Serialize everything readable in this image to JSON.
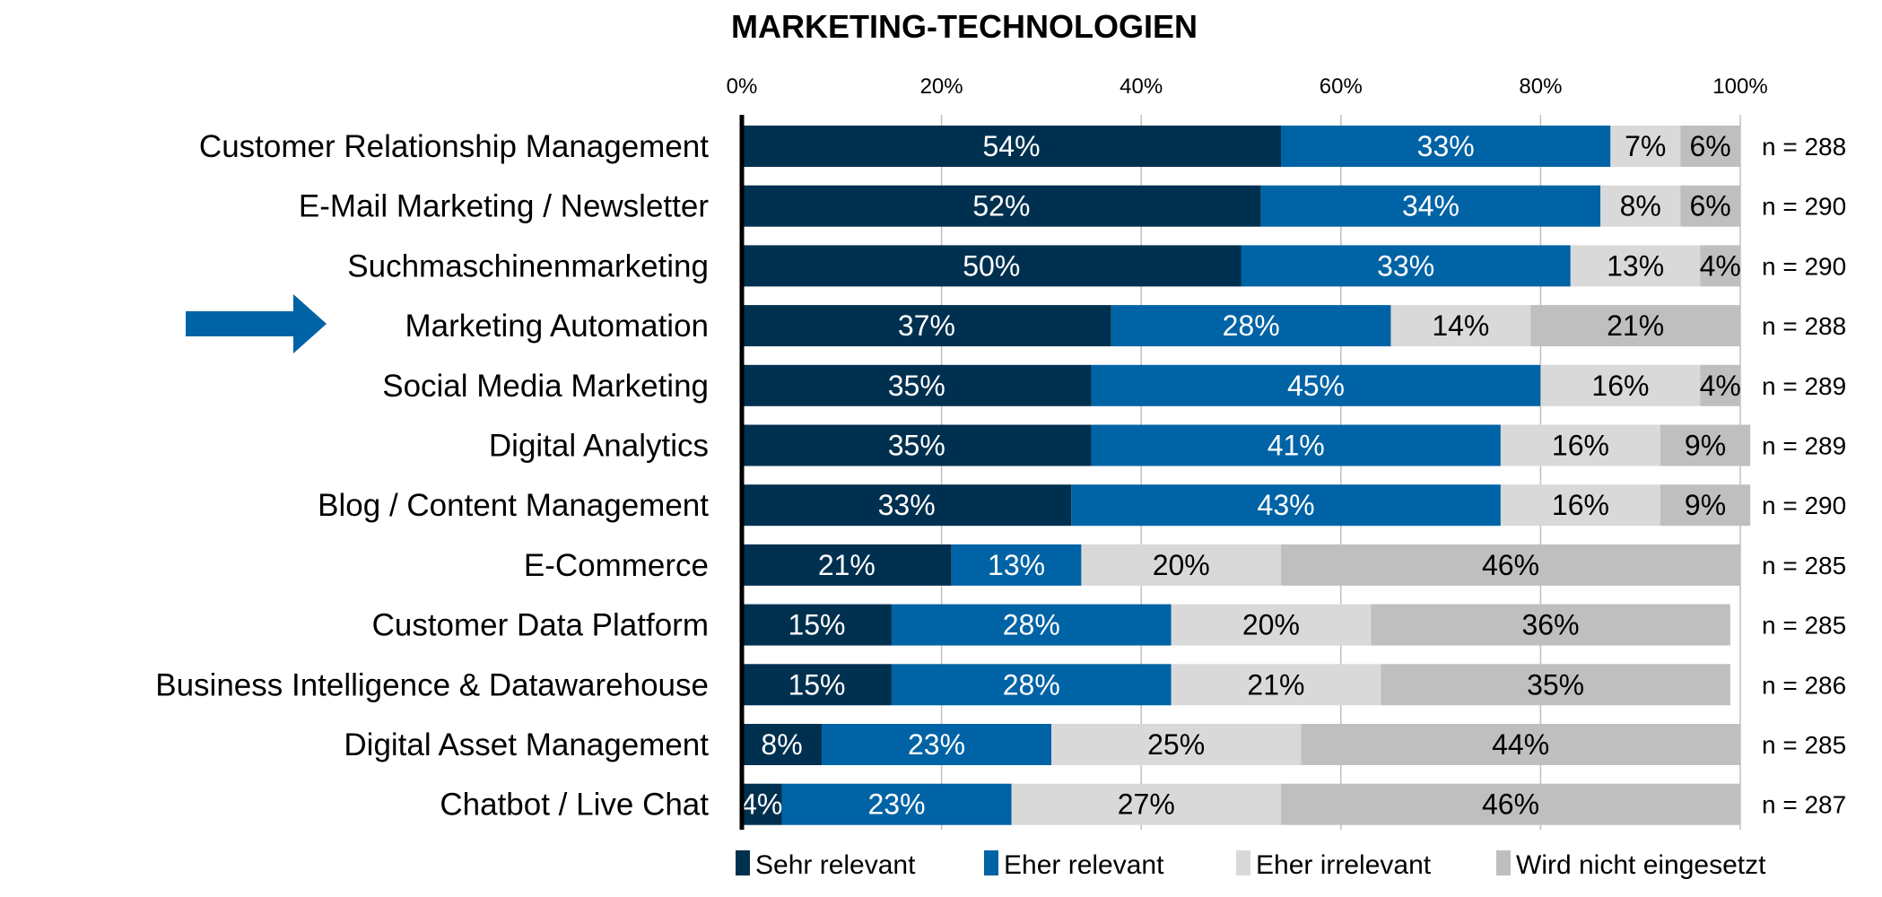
{
  "chart_data": {
    "type": "bar",
    "orientation": "horizontal",
    "stacked": true,
    "title": "MARKETING-TECHNOLOGIEN",
    "xlim": [
      0,
      100
    ],
    "xticks": [
      "0%",
      "20%",
      "40%",
      "60%",
      "80%",
      "100%"
    ],
    "xaxis_position": "top",
    "grid": true,
    "legend_position": "bottom",
    "categories": [
      "Customer Relationship Management",
      "E-Mail Marketing / Newsletter",
      "Suchmaschinenmarketing",
      "Marketing Automation",
      "Social Media Marketing",
      "Digital Analytics",
      "Blog / Content Management",
      "E-Commerce",
      "Customer Data Platform",
      "Business Intelligence & Datawarehouse",
      "Digital Asset Management",
      "Chatbot / Live Chat"
    ],
    "n_labels": [
      "n = 288",
      "n = 290",
      "n = 290",
      "n = 288",
      "n = 289",
      "n = 289",
      "n = 290",
      "n = 285",
      "n = 285",
      "n = 286",
      "n = 285",
      "n = 287"
    ],
    "highlighted_category": "Marketing Automation",
    "series": [
      {
        "name": "Sehr relevant",
        "color": "#00304f",
        "label_color": "#ffffff",
        "values": [
          54,
          52,
          50,
          37,
          35,
          35,
          33,
          21,
          15,
          15,
          8,
          4
        ]
      },
      {
        "name": "Eher relevant",
        "color": "#0063a5",
        "label_color": "#ffffff",
        "values": [
          33,
          34,
          33,
          28,
          45,
          41,
          43,
          13,
          28,
          28,
          23,
          23
        ]
      },
      {
        "name": "Eher irrelevant",
        "color": "#d9d9d9",
        "label_color": "#000000",
        "values": [
          7,
          8,
          13,
          14,
          16,
          16,
          16,
          20,
          20,
          21,
          25,
          27
        ]
      },
      {
        "name": "Wird nicht eingesetzt",
        "color": "#bfbfbf",
        "label_color": "#000000",
        "values": [
          6,
          6,
          4,
          21,
          4,
          9,
          9,
          46,
          36,
          35,
          44,
          46
        ]
      }
    ]
  },
  "arrow": {
    "color": "#0063a5",
    "icon": "right-arrow"
  }
}
